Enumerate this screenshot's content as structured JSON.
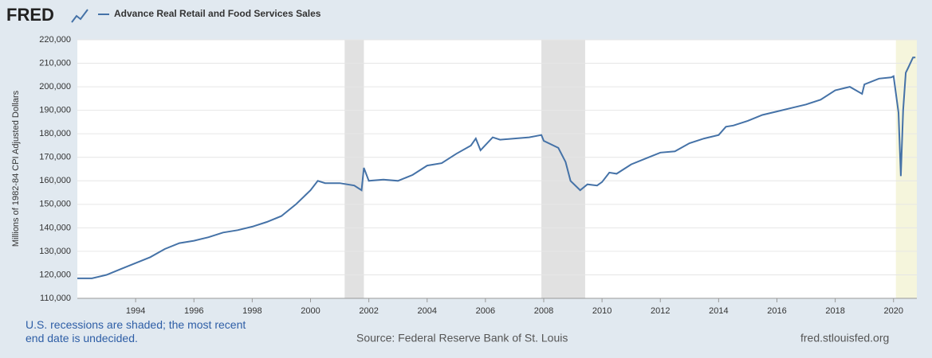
{
  "chart_data": {
    "type": "line",
    "logo": "FRED",
    "title": "Advance Real Retail and Food Services Sales",
    "y_label": "Millions of 1982-84 CPI Adjusted Dollars",
    "note": "U.S. recessions are shaded; the most recent end date is undecided.",
    "source": "Source: Federal Reserve Bank of St. Louis",
    "site": "fred.stlouisfed.org",
    "xlim": [
      1992,
      2020.8
    ],
    "xticks": [
      1994,
      1996,
      1998,
      2000,
      2002,
      2004,
      2006,
      2008,
      2010,
      2012,
      2014,
      2016,
      2018,
      2020
    ],
    "ylim": [
      110000,
      220000
    ],
    "yticks": [
      {
        "value": 110000,
        "label": "110,000"
      },
      {
        "value": 120000,
        "label": "120,000"
      },
      {
        "value": 130000,
        "label": "130,000"
      },
      {
        "value": 140000,
        "label": "140,000"
      },
      {
        "value": 150000,
        "label": "150,000"
      },
      {
        "value": 160000,
        "label": "160,000"
      },
      {
        "value": 170000,
        "label": "170,000"
      },
      {
        "value": 180000,
        "label": "180,000"
      },
      {
        "value": 190000,
        "label": "190,000"
      },
      {
        "value": 200000,
        "label": "200,000"
      },
      {
        "value": 210000,
        "label": "210,000"
      },
      {
        "value": 220000,
        "label": "220,000"
      }
    ],
    "grid": true,
    "recessions": [
      {
        "start": 2001.17,
        "end": 2001.83
      },
      {
        "start": 2007.92,
        "end": 2009.42
      }
    ],
    "recent_recession_start": 2020.08,
    "series": [
      {
        "name": "Advance Real Retail and Food Services Sales",
        "color": "#4572a7",
        "x": [
          1992.0,
          1992.5,
          1993.0,
          1993.5,
          1994.0,
          1994.5,
          1995.0,
          1995.5,
          1996.0,
          1996.5,
          1997.0,
          1997.5,
          1998.0,
          1998.5,
          1999.0,
          1999.5,
          2000.0,
          2000.25,
          2000.5,
          2001.0,
          2001.5,
          2001.75,
          2001.83,
          2002.0,
          2002.5,
          2003.0,
          2003.5,
          2004.0,
          2004.5,
          2005.0,
          2005.5,
          2005.67,
          2005.83,
          2006.25,
          2006.5,
          2007.0,
          2007.5,
          2007.92,
          2008.0,
          2008.5,
          2008.75,
          2008.92,
          2009.25,
          2009.5,
          2009.83,
          2010.0,
          2010.25,
          2010.5,
          2011.0,
          2011.5,
          2012.0,
          2012.5,
          2013.0,
          2013.5,
          2014.0,
          2014.25,
          2014.5,
          2015.0,
          2015.5,
          2016.0,
          2016.5,
          2017.0,
          2017.5,
          2018.0,
          2018.5,
          2018.92,
          2019.0,
          2019.5,
          2019.92,
          2020.0,
          2020.17,
          2020.25,
          2020.33,
          2020.42,
          2020.5,
          2020.67,
          2020.75
        ],
        "values": [
          118500,
          118500,
          120000,
          122500,
          125000,
          127500,
          131000,
          133500,
          134500,
          136000,
          138000,
          139000,
          140500,
          142500,
          145000,
          150000,
          156000,
          160000,
          159000,
          159000,
          158000,
          156000,
          165500,
          160000,
          160500,
          160000,
          162500,
          166500,
          167500,
          171500,
          175000,
          178000,
          173000,
          178500,
          177500,
          178000,
          178500,
          179500,
          177000,
          174000,
          168000,
          160000,
          156000,
          158500,
          158000,
          159500,
          163500,
          163000,
          167000,
          169500,
          172000,
          172500,
          176000,
          178000,
          179500,
          183000,
          183500,
          185500,
          188000,
          189500,
          191000,
          192500,
          194500,
          198500,
          200000,
          197000,
          201000,
          203500,
          204000,
          204500,
          189000,
          162000,
          190000,
          206000,
          208000,
          212500,
          212500
        ]
      }
    ]
  }
}
